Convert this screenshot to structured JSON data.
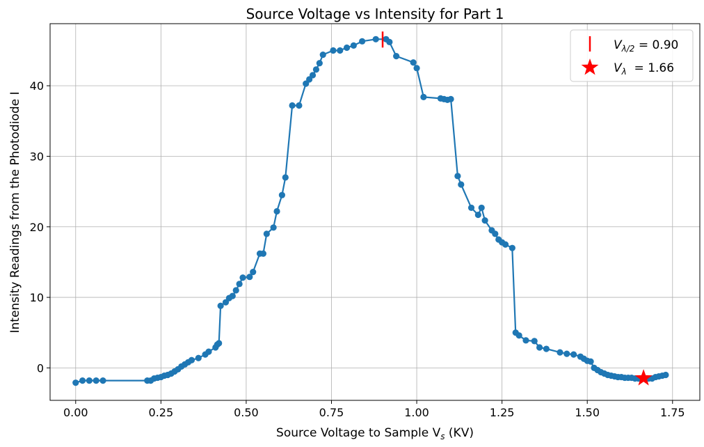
{
  "chart_data": {
    "type": "line",
    "title": "Source Voltage vs Intensity for Part 1",
    "xlabel": "Source Voltage to Sample V",
    "xlabel_sub": "s",
    "xlabel_suffix": " (KV)",
    "ylabel": "Intensity Readings from the Photodiode I",
    "xlim": [
      -0.075,
      1.83
    ],
    "ylim": [
      -4.6,
      48.8
    ],
    "xticks": [
      0.0,
      0.25,
      0.5,
      0.75,
      1.0,
      1.25,
      1.5,
      1.75
    ],
    "xtick_labels": [
      "0.00",
      "0.25",
      "0.50",
      "0.75",
      "1.00",
      "1.25",
      "1.50",
      "1.75"
    ],
    "yticks": [
      0,
      10,
      20,
      30,
      40
    ],
    "ytick_labels": [
      "0",
      "10",
      "20",
      "30",
      "40"
    ],
    "grid": true,
    "legend_placement": "top-right",
    "series": [
      {
        "name": "data",
        "color": "#1f77b4",
        "x": [
          0.0,
          0.02,
          0.04,
          0.06,
          0.08,
          0.21,
          0.22,
          0.23,
          0.24,
          0.25,
          0.26,
          0.27,
          0.28,
          0.29,
          0.3,
          0.31,
          0.32,
          0.33,
          0.34,
          0.36,
          0.38,
          0.39,
          0.41,
          0.415,
          0.42,
          0.425,
          0.44,
          0.45,
          0.46,
          0.47,
          0.48,
          0.49,
          0.51,
          0.52,
          0.54,
          0.55,
          0.56,
          0.58,
          0.59,
          0.605,
          0.615,
          0.635,
          0.655,
          0.675,
          0.685,
          0.695,
          0.705,
          0.715,
          0.725,
          0.755,
          0.775,
          0.795,
          0.815,
          0.84,
          0.88,
          0.91,
          0.92,
          0.94,
          0.99,
          1.0,
          1.02,
          1.07,
          1.08,
          1.09,
          1.1,
          1.12,
          1.13,
          1.16,
          1.18,
          1.19,
          1.2,
          1.22,
          1.23,
          1.24,
          1.25,
          1.26,
          1.28,
          1.29,
          1.3,
          1.32,
          1.345,
          1.36,
          1.38,
          1.42,
          1.44,
          1.46,
          1.48,
          1.49,
          1.5,
          1.51,
          1.52,
          1.53,
          1.54,
          1.55,
          1.56,
          1.57,
          1.58,
          1.59,
          1.6,
          1.61,
          1.62,
          1.63,
          1.64,
          1.65,
          1.66,
          1.67,
          1.68,
          1.69,
          1.7,
          1.71,
          1.72,
          1.73
        ],
        "y": [
          -2.1,
          -1.8,
          -1.8,
          -1.8,
          -1.8,
          -1.8,
          -1.8,
          -1.5,
          -1.4,
          -1.3,
          -1.1,
          -1.0,
          -0.8,
          -0.5,
          -0.2,
          0.2,
          0.5,
          0.8,
          1.1,
          1.4,
          1.9,
          2.3,
          2.9,
          3.3,
          3.5,
          8.8,
          9.3,
          9.9,
          10.2,
          11.0,
          11.9,
          12.8,
          12.9,
          13.6,
          16.2,
          16.2,
          19.0,
          19.9,
          22.2,
          24.5,
          27.0,
          37.2,
          37.2,
          40.3,
          40.9,
          41.5,
          42.3,
          43.2,
          44.4,
          45.0,
          45.0,
          45.4,
          45.7,
          46.3,
          46.6,
          46.6,
          46.2,
          44.2,
          43.3,
          42.5,
          38.4,
          38.2,
          38.1,
          38.0,
          38.1,
          27.2,
          26.0,
          22.7,
          21.7,
          22.7,
          20.9,
          19.5,
          19.0,
          18.2,
          17.8,
          17.5,
          17.0,
          5.0,
          4.6,
          3.9,
          3.8,
          2.9,
          2.7,
          2.2,
          2.0,
          1.9,
          1.6,
          1.3,
          1.0,
          0.9,
          0.0,
          -0.3,
          -0.6,
          -0.8,
          -1.0,
          -1.1,
          -1.2,
          -1.3,
          -1.3,
          -1.4,
          -1.4,
          -1.4,
          -1.5,
          -1.5,
          -1.5,
          -1.5,
          -1.5,
          -1.5,
          -1.3,
          -1.2,
          -1.1,
          -1.0
        ]
      }
    ],
    "legend": [
      {
        "marker": "vline",
        "color": "#ff0000",
        "label_main": "V",
        "label_sub": "λ/2",
        "label_value": " = 0.90",
        "x": 0.9,
        "y": 46.6
      },
      {
        "marker": "star",
        "color": "#ff0000",
        "label_main": "V",
        "label_sub": "λ",
        "label_value": "  = 1.66",
        "x": 1.665,
        "y": -1.45
      }
    ]
  }
}
